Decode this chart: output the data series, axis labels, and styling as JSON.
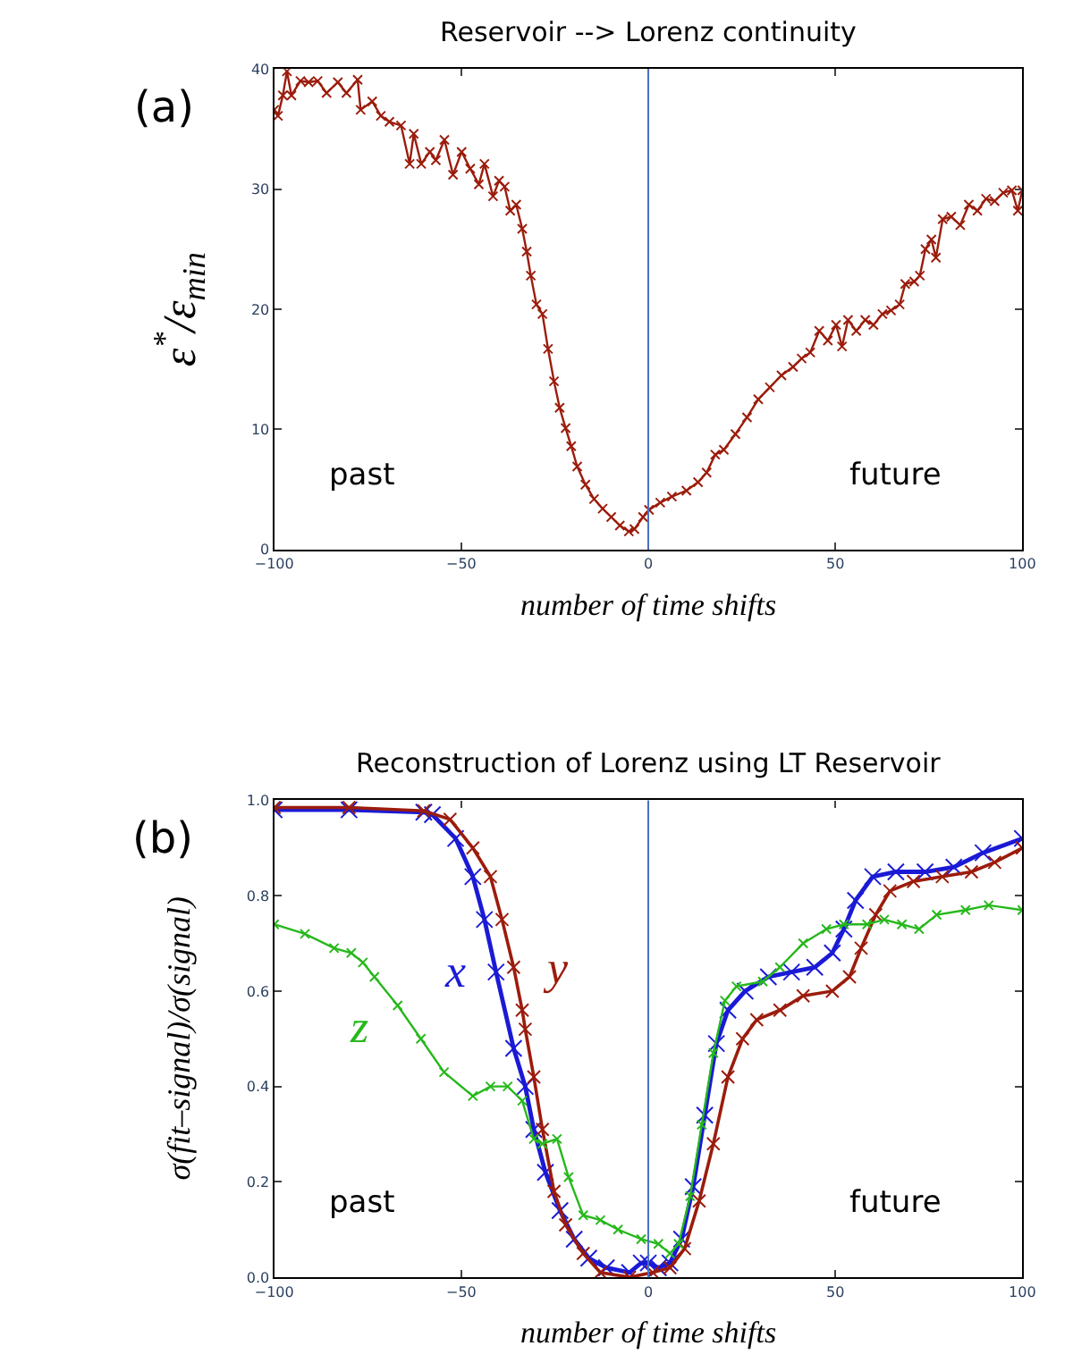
{
  "chart_data": [
    {
      "type": "line",
      "title": "Reservoir --> Lorenz continuity",
      "xlabel": "number of time shifts",
      "ylabel": "ε$^{*}$/ε$_{min}$",
      "annotations": [
        "(a)",
        "past",
        "future"
      ],
      "x": [
        -100,
        -99,
        -97.7,
        -96.6,
        -95.4,
        -93,
        -90.8,
        -88.4,
        -86,
        -83,
        -80.7,
        -77.7,
        -76.9,
        -73.8,
        -71.5,
        -69.2,
        -66.1,
        -63.8,
        -62.7,
        -60.7,
        -58.4,
        -56.8,
        -54.5,
        -52.2,
        -49.9,
        -47.6,
        -45.3,
        -43.8,
        -41.5,
        -39.9,
        -38.4,
        -36.9,
        -35.3,
        -33.7,
        -32.5,
        -31.4,
        -29.9,
        -28.3,
        -26.8,
        -25.2,
        -23.7,
        -22.1,
        -20.6,
        -19,
        -16.8,
        -14.5,
        -12.2,
        -9.9,
        -7.6,
        -5.2,
        -3.7,
        -1.4,
        0.2,
        3.2,
        6.3,
        10.2,
        13.3,
        15.6,
        17.9,
        20.2,
        23.3,
        26.4,
        29.4,
        32.5,
        35.6,
        38.7,
        41,
        43.3,
        45.7,
        48,
        50.2,
        51.8,
        53.4,
        55.6,
        58,
        60.2,
        62.6,
        64.9,
        67.2,
        68.7,
        71.1,
        72.6,
        74.1,
        75.7,
        76.9,
        78.7,
        81,
        83.4,
        85.7,
        88,
        90.3,
        92.6,
        94.9,
        97.2,
        98.8,
        100
      ],
      "series": [
        {
          "color": "#9b1c0c",
          "values": [
            36.6,
            36.1,
            37.8,
            39.8,
            37.8,
            39,
            38.9,
            39,
            38,
            38.9,
            38,
            39.1,
            36.6,
            37.3,
            36.1,
            35.6,
            35.3,
            32.1,
            34.6,
            32.1,
            33.1,
            32.4,
            34.1,
            31.2,
            33.1,
            31.7,
            30.4,
            32.1,
            29.4,
            30.7,
            30.2,
            28.2,
            28.7,
            26.7,
            24.8,
            22.8,
            20.4,
            19.6,
            16.7,
            14,
            11.8,
            10.1,
            8.6,
            6.9,
            5.4,
            4.2,
            3.4,
            2.7,
            2,
            1.5,
            1.7,
            2.7,
            3.3,
            3.9,
            4.4,
            4.9,
            5.6,
            6.4,
            7.9,
            8.3,
            9.6,
            11,
            12.5,
            13.5,
            14.5,
            15.2,
            15.9,
            16.4,
            18.2,
            17.4,
            18.7,
            16.9,
            19.1,
            18.2,
            19.1,
            18.7,
            19.6,
            19.9,
            20.4,
            22.1,
            22.3,
            22.8,
            25,
            25.8,
            24.3,
            27.5,
            27.7,
            27,
            28.7,
            28.2,
            29.2,
            29,
            29.7,
            29.9,
            28.2,
            29.9
          ]
        }
      ],
      "xlim": [
        -100,
        100
      ],
      "xticks": [
        -100,
        -50,
        0,
        50,
        100
      ],
      "ylim": [
        0,
        40
      ],
      "yticks": [
        0,
        10,
        20,
        30,
        40
      ],
      "ref_lines": [
        {
          "axis": "x",
          "value": 0,
          "color": "#4a72c4"
        }
      ],
      "grid": false,
      "legend": false,
      "marker": "cross",
      "line_style": "solid"
    },
    {
      "type": "line",
      "title": "Reconstruction of Lorenz using LT Reservoir",
      "xlabel": "number of time shifts",
      "ylabel": "σ(fit–signal)/σ(signal)",
      "annotations": [
        "(b)",
        "past",
        "future"
      ],
      "series": [
        {
          "name": "x",
          "color": "#1a1ad6",
          "x": [
            -100,
            -80,
            -60,
            -57.7,
            -51.5,
            -46.9,
            -43.8,
            -40.7,
            -36,
            -32.9,
            -30.6,
            -27.5,
            -23.6,
            -19.8,
            -15.9,
            -11.2,
            -5,
            -1.9,
            0,
            2.7,
            5.8,
            8.9,
            12,
            15.1,
            18.2,
            21.3,
            25.9,
            32.1,
            38.3,
            44.5,
            49.2,
            52.3,
            55.4,
            60,
            66.2,
            74,
            81.7,
            89.5,
            100
          ],
          "values": [
            0.98,
            0.98,
            0.975,
            0.97,
            0.92,
            0.84,
            0.75,
            0.64,
            0.48,
            0.4,
            0.31,
            0.22,
            0.14,
            0.08,
            0.04,
            0.02,
            0.01,
            0.03,
            0.03,
            0.02,
            0.03,
            0.08,
            0.19,
            0.34,
            0.49,
            0.56,
            0.6,
            0.63,
            0.64,
            0.65,
            0.68,
            0.73,
            0.79,
            0.84,
            0.85,
            0.85,
            0.86,
            0.89,
            0.92
          ]
        },
        {
          "name": "y",
          "color": "#9b1c0c",
          "x": [
            -100,
            -80,
            -60,
            -53,
            -46.9,
            -42.2,
            -39.1,
            -36,
            -33.7,
            -32.9,
            -30.6,
            -28.3,
            -25.2,
            -22.1,
            -17.4,
            -12.8,
            -5,
            1.2,
            5.8,
            9.7,
            13.6,
            17.4,
            21.3,
            25.2,
            29,
            35.2,
            41.4,
            49.2,
            53.8,
            56.9,
            60.8,
            64.6,
            70.9,
            78.6,
            86.4,
            92.6,
            100
          ],
          "values": [
            0.985,
            0.985,
            0.978,
            0.96,
            0.9,
            0.84,
            0.75,
            0.65,
            0.56,
            0.52,
            0.42,
            0.31,
            0.18,
            0.11,
            0.05,
            0.01,
            0.0,
            0.01,
            0.02,
            0.06,
            0.16,
            0.28,
            0.42,
            0.5,
            0.54,
            0.56,
            0.59,
            0.6,
            0.63,
            0.69,
            0.76,
            0.81,
            0.83,
            0.84,
            0.85,
            0.87,
            0.9
          ]
        },
        {
          "name": "z",
          "color": "#27b81c",
          "x": [
            -100,
            -91.8,
            -84,
            -79.4,
            -76.3,
            -73.2,
            -67,
            -60.8,
            -54.6,
            -46.9,
            -42.2,
            -37.6,
            -33.7,
            -30.6,
            -28.3,
            -24.4,
            -21.3,
            -17.4,
            -12.8,
            -8.1,
            -1.9,
            2.7,
            5.8,
            8.1,
            11.2,
            14.3,
            17.4,
            20.5,
            23.6,
            30.6,
            35.2,
            41.4,
            47.6,
            52.3,
            58.5,
            63.1,
            67.8,
            72.4,
            77.1,
            84.8,
            91,
            100
          ],
          "values": [
            0.74,
            0.72,
            0.69,
            0.68,
            0.66,
            0.63,
            0.57,
            0.5,
            0.43,
            0.38,
            0.4,
            0.4,
            0.37,
            0.29,
            0.28,
            0.29,
            0.21,
            0.13,
            0.12,
            0.1,
            0.08,
            0.07,
            0.05,
            0.07,
            0.17,
            0.32,
            0.47,
            0.58,
            0.61,
            0.62,
            0.65,
            0.7,
            0.73,
            0.74,
            0.74,
            0.75,
            0.74,
            0.73,
            0.76,
            0.77,
            0.78,
            0.77
          ]
        }
      ],
      "xlim": [
        -100,
        100
      ],
      "xticks": [
        -100,
        -50,
        0,
        50,
        100
      ],
      "ylim": [
        0,
        1
      ],
      "yticks": [
        {
          "value": 0,
          "label": "0.0"
        },
        0.2,
        0.4,
        0.6,
        0.8,
        {
          "value": 1,
          "label": "1.0"
        }
      ],
      "ref_lines": [
        {
          "axis": "x",
          "value": 0,
          "color": "#4a72c4"
        }
      ],
      "grid": false,
      "legend": false,
      "marker": "cross",
      "line_style": "solid"
    }
  ]
}
